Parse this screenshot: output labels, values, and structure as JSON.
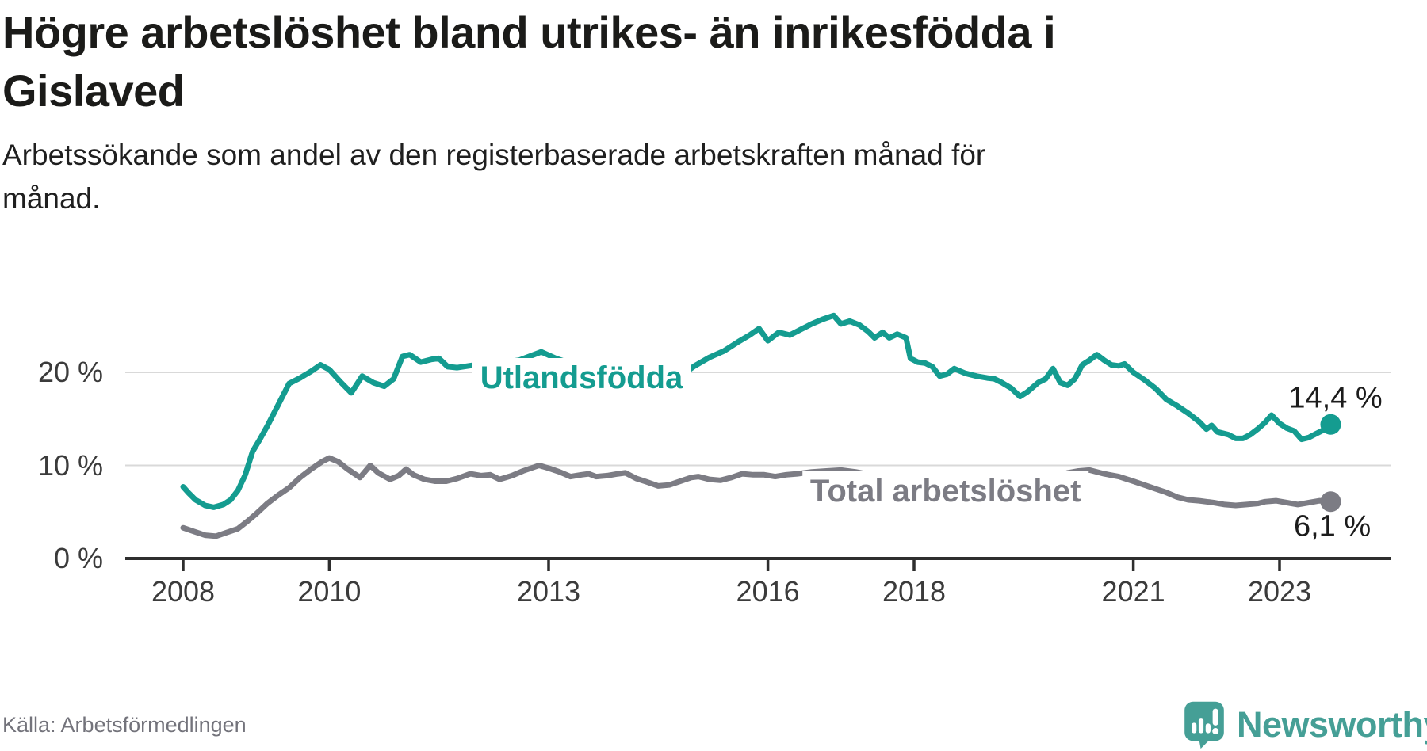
{
  "header": {
    "title_line1": "Högre arbetslöshet bland utrikes- än inrikesfödda i",
    "title_line2": "Gislaved",
    "subtitle_line1": "Arbetssökande som andel av den registerbaserade arbetskraften månad för",
    "subtitle_line2": "månad."
  },
  "footer": {
    "source": "Källa: Arbetsförmedlingen",
    "brand_name": "Newsworthy",
    "brand_color": "#459f96"
  },
  "chart_data": {
    "type": "line",
    "title": "Högre arbetslöshet bland utrikes- än inrikesfödda i Gislaved",
    "subtitle": "Arbetssökande som andel av den registerbaserade arbetskraften månad för månad.",
    "grid": true,
    "grid_color": "#d9d9d9",
    "axis_color": "#2e2e2e",
    "x_axis": {
      "unit": "year",
      "domain": [
        2007.8,
        2024.5
      ],
      "ticks": [
        2008,
        2010,
        2013,
        2016,
        2018,
        2021,
        2023
      ]
    },
    "y_axis": {
      "unit": "percent",
      "domain": [
        0,
        28
      ],
      "ticks": [
        {
          "value": 0,
          "label": "0 %"
        },
        {
          "value": 10,
          "label": "10 %"
        },
        {
          "value": 20,
          "label": "20 %"
        }
      ]
    },
    "series": [
      {
        "name": "Utlandsfödda",
        "color": "#149c90",
        "end_label": "14,4 %",
        "end_value": 14.4,
        "label_at": [
          2013.45,
          19.4
        ],
        "points": [
          [
            2008.0,
            7.7
          ],
          [
            2008.08,
            7.0
          ],
          [
            2008.17,
            6.3
          ],
          [
            2008.3,
            5.7
          ],
          [
            2008.42,
            5.5
          ],
          [
            2008.55,
            5.8
          ],
          [
            2008.65,
            6.3
          ],
          [
            2008.75,
            7.3
          ],
          [
            2008.85,
            9.0
          ],
          [
            2008.95,
            11.5
          ],
          [
            2009.05,
            12.8
          ],
          [
            2009.15,
            14.2
          ],
          [
            2009.3,
            16.5
          ],
          [
            2009.45,
            18.8
          ],
          [
            2009.6,
            19.4
          ],
          [
            2009.75,
            20.1
          ],
          [
            2009.88,
            20.8
          ],
          [
            2010.0,
            20.3
          ],
          [
            2010.15,
            19.0
          ],
          [
            2010.3,
            17.8
          ],
          [
            2010.45,
            19.6
          ],
          [
            2010.6,
            18.9
          ],
          [
            2010.75,
            18.5
          ],
          [
            2010.88,
            19.3
          ],
          [
            2011.0,
            21.7
          ],
          [
            2011.1,
            21.9
          ],
          [
            2011.25,
            21.1
          ],
          [
            2011.4,
            21.4
          ],
          [
            2011.5,
            21.5
          ],
          [
            2011.62,
            20.6
          ],
          [
            2011.75,
            20.5
          ],
          [
            2012.0,
            20.8
          ],
          [
            2012.3,
            21.0
          ],
          [
            2012.6,
            21.3
          ],
          [
            2012.9,
            22.2
          ],
          [
            2013.1,
            21.5
          ],
          [
            2013.4,
            20.7
          ],
          [
            2013.7,
            20.0
          ],
          [
            2014.0,
            19.4
          ],
          [
            2014.2,
            18.8
          ],
          [
            2014.4,
            18.5
          ],
          [
            2014.6,
            19.0
          ],
          [
            2014.8,
            19.6
          ],
          [
            2015.0,
            20.7
          ],
          [
            2015.2,
            21.6
          ],
          [
            2015.4,
            22.3
          ],
          [
            2015.6,
            23.3
          ],
          [
            2015.75,
            24.0
          ],
          [
            2015.88,
            24.7
          ],
          [
            2016.0,
            23.4
          ],
          [
            2016.15,
            24.3
          ],
          [
            2016.3,
            24.0
          ],
          [
            2016.45,
            24.6
          ],
          [
            2016.6,
            25.2
          ],
          [
            2016.75,
            25.7
          ],
          [
            2016.9,
            26.1
          ],
          [
            2017.0,
            25.2
          ],
          [
            2017.12,
            25.5
          ],
          [
            2017.25,
            25.1
          ],
          [
            2017.37,
            24.4
          ],
          [
            2017.46,
            23.7
          ],
          [
            2017.57,
            24.3
          ],
          [
            2017.66,
            23.7
          ],
          [
            2017.77,
            24.1
          ],
          [
            2017.89,
            23.7
          ],
          [
            2017.95,
            21.5
          ],
          [
            2018.05,
            21.1
          ],
          [
            2018.15,
            21.0
          ],
          [
            2018.25,
            20.6
          ],
          [
            2018.35,
            19.6
          ],
          [
            2018.45,
            19.8
          ],
          [
            2018.55,
            20.4
          ],
          [
            2018.7,
            19.9
          ],
          [
            2018.85,
            19.6
          ],
          [
            2019.0,
            19.4
          ],
          [
            2019.1,
            19.3
          ],
          [
            2019.2,
            18.9
          ],
          [
            2019.33,
            18.3
          ],
          [
            2019.45,
            17.4
          ],
          [
            2019.55,
            17.9
          ],
          [
            2019.7,
            18.9
          ],
          [
            2019.8,
            19.3
          ],
          [
            2019.9,
            20.4
          ],
          [
            2020.0,
            18.9
          ],
          [
            2020.1,
            18.6
          ],
          [
            2020.2,
            19.3
          ],
          [
            2020.3,
            20.8
          ],
          [
            2020.4,
            21.3
          ],
          [
            2020.5,
            21.9
          ],
          [
            2020.6,
            21.3
          ],
          [
            2020.7,
            20.8
          ],
          [
            2020.8,
            20.7
          ],
          [
            2020.88,
            20.9
          ],
          [
            2021.0,
            20.0
          ],
          [
            2021.15,
            19.2
          ],
          [
            2021.3,
            18.3
          ],
          [
            2021.45,
            17.1
          ],
          [
            2021.6,
            16.4
          ],
          [
            2021.75,
            15.6
          ],
          [
            2021.9,
            14.7
          ],
          [
            2022.0,
            13.9
          ],
          [
            2022.07,
            14.3
          ],
          [
            2022.15,
            13.6
          ],
          [
            2022.3,
            13.3
          ],
          [
            2022.4,
            12.9
          ],
          [
            2022.5,
            12.9
          ],
          [
            2022.6,
            13.3
          ],
          [
            2022.7,
            13.9
          ],
          [
            2022.8,
            14.6
          ],
          [
            2022.89,
            15.4
          ],
          [
            2023.0,
            14.5
          ],
          [
            2023.1,
            14.0
          ],
          [
            2023.2,
            13.7
          ],
          [
            2023.3,
            12.8
          ],
          [
            2023.4,
            13.0
          ],
          [
            2023.5,
            13.4
          ],
          [
            2023.6,
            13.8
          ],
          [
            2023.7,
            14.4
          ]
        ]
      },
      {
        "name": "Total arbetslöshet",
        "color": "#7c7c84",
        "end_label": "6,1 %",
        "end_value": 6.1,
        "label_at": [
          2018.43,
          7.2
        ],
        "points": [
          [
            2008.0,
            3.3
          ],
          [
            2008.15,
            2.9
          ],
          [
            2008.3,
            2.5
          ],
          [
            2008.45,
            2.4
          ],
          [
            2008.6,
            2.8
          ],
          [
            2008.75,
            3.2
          ],
          [
            2008.88,
            4.0
          ],
          [
            2009.0,
            4.8
          ],
          [
            2009.15,
            5.9
          ],
          [
            2009.3,
            6.8
          ],
          [
            2009.45,
            7.6
          ],
          [
            2009.6,
            8.7
          ],
          [
            2009.75,
            9.6
          ],
          [
            2009.9,
            10.4
          ],
          [
            2010.0,
            10.8
          ],
          [
            2010.12,
            10.4
          ],
          [
            2010.25,
            9.6
          ],
          [
            2010.42,
            8.7
          ],
          [
            2010.56,
            10.0
          ],
          [
            2010.67,
            9.2
          ],
          [
            2010.83,
            8.5
          ],
          [
            2010.95,
            8.9
          ],
          [
            2011.05,
            9.6
          ],
          [
            2011.15,
            9.0
          ],
          [
            2011.3,
            8.5
          ],
          [
            2011.45,
            8.3
          ],
          [
            2011.6,
            8.3
          ],
          [
            2011.75,
            8.6
          ],
          [
            2011.93,
            9.1
          ],
          [
            2012.08,
            8.9
          ],
          [
            2012.2,
            9.0
          ],
          [
            2012.33,
            8.5
          ],
          [
            2012.5,
            8.9
          ],
          [
            2012.65,
            9.4
          ],
          [
            2012.87,
            10.0
          ],
          [
            2013.0,
            9.7
          ],
          [
            2013.15,
            9.3
          ],
          [
            2013.3,
            8.8
          ],
          [
            2013.45,
            9.0
          ],
          [
            2013.55,
            9.1
          ],
          [
            2013.65,
            8.8
          ],
          [
            2013.8,
            8.9
          ],
          [
            2013.95,
            9.1
          ],
          [
            2014.05,
            9.2
          ],
          [
            2014.2,
            8.6
          ],
          [
            2014.35,
            8.2
          ],
          [
            2014.5,
            7.8
          ],
          [
            2014.65,
            7.9
          ],
          [
            2014.8,
            8.3
          ],
          [
            2014.95,
            8.7
          ],
          [
            2015.05,
            8.8
          ],
          [
            2015.2,
            8.5
          ],
          [
            2015.35,
            8.4
          ],
          [
            2015.5,
            8.7
          ],
          [
            2015.65,
            9.1
          ],
          [
            2015.8,
            9.0
          ],
          [
            2015.95,
            9.0
          ],
          [
            2016.1,
            8.8
          ],
          [
            2016.25,
            9.0
          ],
          [
            2016.4,
            9.1
          ],
          [
            2016.6,
            9.3
          ],
          [
            2016.8,
            9.4
          ],
          [
            2017.0,
            9.5
          ],
          [
            2017.2,
            9.3
          ],
          [
            2017.4,
            9.0
          ],
          [
            2017.6,
            8.9
          ],
          [
            2017.8,
            8.7
          ],
          [
            2018.0,
            8.5
          ],
          [
            2018.25,
            8.4
          ],
          [
            2018.5,
            8.4
          ],
          [
            2018.75,
            8.5
          ],
          [
            2019.0,
            8.5
          ],
          [
            2019.25,
            8.3
          ],
          [
            2019.5,
            8.0
          ],
          [
            2019.7,
            8.1
          ],
          [
            2019.9,
            8.5
          ],
          [
            2020.1,
            9.2
          ],
          [
            2020.25,
            9.4
          ],
          [
            2020.4,
            9.5
          ],
          [
            2020.6,
            9.1
          ],
          [
            2020.8,
            8.8
          ],
          [
            2021.0,
            8.3
          ],
          [
            2021.15,
            7.9
          ],
          [
            2021.3,
            7.5
          ],
          [
            2021.45,
            7.1
          ],
          [
            2021.6,
            6.6
          ],
          [
            2021.75,
            6.3
          ],
          [
            2021.9,
            6.2
          ],
          [
            2022.1,
            6.0
          ],
          [
            2022.25,
            5.8
          ],
          [
            2022.4,
            5.7
          ],
          [
            2022.55,
            5.8
          ],
          [
            2022.7,
            5.9
          ],
          [
            2022.8,
            6.1
          ],
          [
            2022.95,
            6.2
          ],
          [
            2023.1,
            6.0
          ],
          [
            2023.25,
            5.8
          ],
          [
            2023.4,
            6.0
          ],
          [
            2023.55,
            6.2
          ],
          [
            2023.7,
            6.1
          ]
        ]
      }
    ]
  }
}
